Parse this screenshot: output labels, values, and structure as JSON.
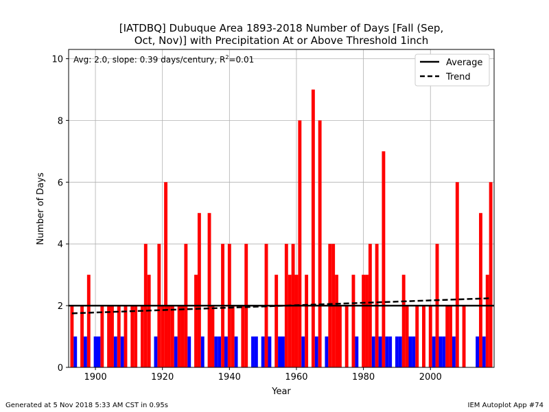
{
  "chart_data": {
    "type": "bar",
    "title_line1": "[IATDBQ] Dubuque Area 1893-2018 Number of Days [Fall (Sep,",
    "title_line2": "Oct, Nov)] with Precipitation At or Above Threshold 1inch",
    "xlabel": "Year",
    "ylabel": "Number of Days",
    "xlim": [
      1892,
      2019
    ],
    "ylim": [
      0,
      10.3
    ],
    "xticks": [
      1900,
      1920,
      1940,
      1960,
      1980,
      2000
    ],
    "yticks": [
      0,
      2,
      4,
      6,
      8,
      10
    ],
    "grid": true,
    "stats_prefix": "Avg: 2.0, slope: 0.39 days/century, R",
    "stats_sup": "2",
    "stats_suffix": "=0.01",
    "average": 2.0,
    "trend": {
      "start_year": 1893,
      "start_value": 1.75,
      "end_year": 2018,
      "end_value": 2.24
    },
    "colors": {
      "above": "#ff0000",
      "below": "#0000ff",
      "average": "#000000",
      "trend": "#000000"
    },
    "legend": {
      "position": "top-right",
      "items": [
        {
          "label": "Average",
          "style": "solid"
        },
        {
          "label": "Trend",
          "style": "dashed"
        }
      ]
    },
    "years": [
      1893,
      1894,
      1895,
      1896,
      1897,
      1898,
      1899,
      1900,
      1901,
      1902,
      1903,
      1904,
      1905,
      1906,
      1907,
      1908,
      1909,
      1910,
      1911,
      1912,
      1913,
      1914,
      1915,
      1916,
      1917,
      1918,
      1919,
      1920,
      1921,
      1922,
      1923,
      1924,
      1925,
      1926,
      1927,
      1928,
      1929,
      1930,
      1931,
      1932,
      1933,
      1934,
      1935,
      1936,
      1937,
      1938,
      1939,
      1940,
      1941,
      1942,
      1943,
      1944,
      1945,
      1946,
      1947,
      1948,
      1949,
      1950,
      1951,
      1952,
      1953,
      1954,
      1955,
      1956,
      1957,
      1958,
      1959,
      1960,
      1961,
      1962,
      1963,
      1964,
      1965,
      1966,
      1967,
      1968,
      1969,
      1970,
      1971,
      1972,
      1973,
      1974,
      1975,
      1976,
      1977,
      1978,
      1979,
      1980,
      1981,
      1982,
      1983,
      1984,
      1985,
      1986,
      1987,
      1988,
      1989,
      1990,
      1991,
      1992,
      1993,
      1994,
      1995,
      1996,
      1997,
      1998,
      1999,
      2000,
      2001,
      2002,
      2003,
      2004,
      2005,
      2006,
      2007,
      2008,
      2009,
      2010,
      2011,
      2012,
      2013,
      2014,
      2015,
      2016,
      2017,
      2018
    ],
    "values": [
      2,
      1,
      0,
      2,
      1,
      3,
      0,
      1,
      1,
      2,
      0,
      2,
      2,
      1,
      2,
      1,
      2,
      0,
      2,
      2,
      0,
      2,
      4,
      3,
      0,
      1,
      4,
      2,
      6,
      2,
      2,
      1,
      2,
      2,
      4,
      1,
      0,
      3,
      5,
      1,
      0,
      5,
      2,
      1,
      1,
      4,
      1,
      4,
      2,
      1,
      0,
      2,
      4,
      0,
      1,
      1,
      0,
      1,
      4,
      1,
      0,
      3,
      1,
      1,
      4,
      3,
      4,
      3,
      8,
      1,
      3,
      0,
      9,
      1,
      8,
      0,
      1,
      4,
      4,
      3,
      2,
      0,
      2,
      0,
      3,
      1,
      0,
      3,
      3,
      4,
      1,
      4,
      1,
      7,
      1,
      1,
      0,
      1,
      1,
      3,
      2,
      1,
      1,
      2,
      0,
      2,
      0,
      2,
      1,
      4,
      1,
      1,
      2,
      2,
      1,
      6,
      0,
      2,
      0,
      0,
      0,
      1,
      5,
      1,
      3,
      6
    ]
  },
  "footer": {
    "left": "Generated at 5 Nov 2018 5:33 AM CST in 0.95s",
    "right": "IEM Autoplot App #74"
  }
}
